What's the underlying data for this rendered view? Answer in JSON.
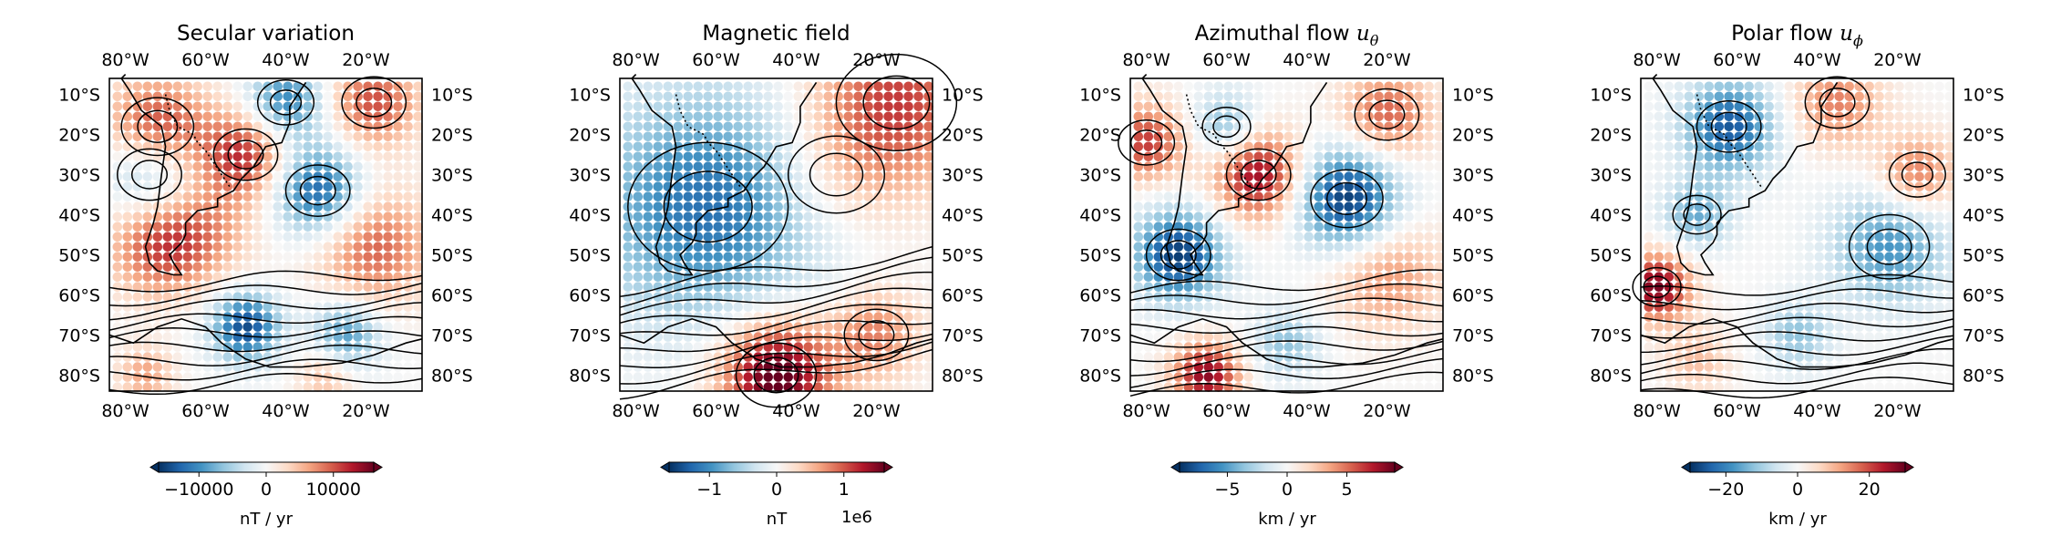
{
  "chart_data": [
    {
      "type": "heatmap",
      "title": "Secular variation",
      "x_ticks": [
        "80°W",
        "60°W",
        "40°W",
        "20°W"
      ],
      "x_tick_values": [
        -80,
        -60,
        -40,
        -20
      ],
      "y_ticks": [
        "10°S",
        "20°S",
        "30°S",
        "40°S",
        "50°S",
        "60°S",
        "70°S",
        "80°S"
      ],
      "y_tick_values": [
        -10,
        -20,
        -30,
        -40,
        -50,
        -60,
        -70,
        -80
      ],
      "xlim": [
        -84,
        -6
      ],
      "ylim": [
        -84,
        -6
      ],
      "colorbar": {
        "ticks": [
          "−10000",
          "0",
          "10000"
        ],
        "tick_values": [
          -10000,
          0,
          10000
        ],
        "range": [
          -16000,
          16000
        ],
        "label": "nT / yr",
        "offset_text": "",
        "colormap": "RdBu_r"
      },
      "field_pattern": [
        {
          "lon": -72,
          "lat": -18,
          "value": 0.7,
          "size": 9
        },
        {
          "lon": -50,
          "lat": -25,
          "value": 0.75,
          "size": 8
        },
        {
          "lon": -40,
          "lat": -12,
          "value": -0.7,
          "size": 7
        },
        {
          "lon": -18,
          "lat": -12,
          "value": 0.65,
          "size": 8
        },
        {
          "lon": -74,
          "lat": -30,
          "value": -0.5,
          "size": 8
        },
        {
          "lon": -32,
          "lat": -34,
          "value": -0.85,
          "size": 8
        },
        {
          "lon": -72,
          "lat": -48,
          "value": 0.6,
          "size": 9
        },
        {
          "lon": -18,
          "lat": -48,
          "value": 0.6,
          "size": 10
        },
        {
          "lon": -60,
          "lat": -44,
          "value": 0.35,
          "size": 9
        },
        {
          "lon": -50,
          "lat": -68,
          "value": -0.9,
          "size": 6
        },
        {
          "lon": -25,
          "lat": -70,
          "value": -0.6,
          "size": 6
        },
        {
          "lon": -75,
          "lat": -80,
          "value": 0.4,
          "size": 5
        },
        {
          "lon": -30,
          "lat": -80,
          "value": 0.35,
          "size": 5
        }
      ]
    },
    {
      "type": "heatmap",
      "title": "Magnetic field",
      "x_ticks": [
        "80°W",
        "60°W",
        "40°W",
        "20°W"
      ],
      "x_tick_values": [
        -80,
        -60,
        -40,
        -20
      ],
      "y_ticks": [
        "10°S",
        "20°S",
        "30°S",
        "40°S",
        "50°S",
        "60°S",
        "70°S",
        "80°S"
      ],
      "y_tick_values": [
        -10,
        -20,
        -30,
        -40,
        -50,
        -60,
        -70,
        -80
      ],
      "xlim": [
        -84,
        -6
      ],
      "ylim": [
        -84,
        -6
      ],
      "colorbar": {
        "ticks": [
          "−1",
          "0",
          "1"
        ],
        "tick_values": [
          -1,
          0,
          1
        ],
        "range": [
          -1.6,
          1.6
        ],
        "label": "nT",
        "offset_text": "1e6",
        "colormap": "RdBu_r"
      },
      "field_pattern": [
        {
          "lon": -62,
          "lat": -38,
          "value": -0.75,
          "size": 20
        },
        {
          "lon": -15,
          "lat": -12,
          "value": 0.7,
          "size": 15
        },
        {
          "lon": -30,
          "lat": -30,
          "value": 0.2,
          "size": 12
        },
        {
          "lon": -45,
          "lat": -80,
          "value": 1.1,
          "size": 10
        },
        {
          "lon": -20,
          "lat": -70,
          "value": 0.5,
          "size": 8
        }
      ]
    },
    {
      "type": "heatmap",
      "title": "Azimuthal flow u_θ",
      "title_text": "Azimuthal flow ",
      "title_math": "u",
      "title_sub": "θ",
      "x_ticks": [
        "80°W",
        "60°W",
        "40°W",
        "20°W"
      ],
      "x_tick_values": [
        -80,
        -60,
        -40,
        -20
      ],
      "y_ticks": [
        "10°S",
        "20°S",
        "30°S",
        "40°S",
        "50°S",
        "60°S",
        "70°S",
        "80°S"
      ],
      "y_tick_values": [
        -10,
        -20,
        -30,
        -40,
        -50,
        -60,
        -70,
        -80
      ],
      "xlim": [
        -84,
        -6
      ],
      "ylim": [
        -84,
        -6
      ],
      "colorbar": {
        "ticks": [
          "−5",
          "0",
          "5"
        ],
        "tick_values": [
          -5,
          0,
          5
        ],
        "range": [
          -9,
          9
        ],
        "label": "km / yr",
        "offset_text": "",
        "colormap": "RdBu_r"
      },
      "field_pattern": [
        {
          "lon": -52,
          "lat": -30,
          "value": 0.9,
          "size": 8
        },
        {
          "lon": -30,
          "lat": -36,
          "value": -1.0,
          "size": 9
        },
        {
          "lon": -72,
          "lat": -50,
          "value": -0.95,
          "size": 8
        },
        {
          "lon": -80,
          "lat": -22,
          "value": 0.7,
          "size": 7
        },
        {
          "lon": -20,
          "lat": -15,
          "value": 0.6,
          "size": 8
        },
        {
          "lon": -60,
          "lat": -18,
          "value": -0.5,
          "size": 6
        },
        {
          "lon": -20,
          "lat": -55,
          "value": 0.45,
          "size": 10
        },
        {
          "lon": -65,
          "lat": -80,
          "value": 0.9,
          "size": 6
        },
        {
          "lon": -45,
          "lat": -72,
          "value": -0.4,
          "size": 6
        }
      ]
    },
    {
      "type": "heatmap",
      "title": "Polar flow u_ϕ",
      "title_text": "Polar flow ",
      "title_math": "u",
      "title_sub": "ϕ",
      "x_ticks": [
        "80°W",
        "60°W",
        "40°W",
        "20°W"
      ],
      "x_tick_values": [
        -80,
        -60,
        -40,
        -20
      ],
      "y_ticks": [
        "10°S",
        "20°S",
        "30°S",
        "40°S",
        "50°S",
        "60°S",
        "70°S",
        "80°S"
      ],
      "y_tick_values": [
        -10,
        -20,
        -30,
        -40,
        -50,
        -60,
        -70,
        -80
      ],
      "xlim": [
        -84,
        -6
      ],
      "ylim": [
        -84,
        -6
      ],
      "colorbar": {
        "ticks": [
          "−20",
          "0",
          "20"
        ],
        "tick_values": [
          -20,
          0,
          20
        ],
        "range": [
          -30,
          30
        ],
        "label": "km / yr",
        "offset_text": "",
        "colormap": "RdBu_r"
      },
      "field_pattern": [
        {
          "lon": -62,
          "lat": -18,
          "value": -0.85,
          "size": 8
        },
        {
          "lon": -80,
          "lat": -58,
          "value": 0.95,
          "size": 6
        },
        {
          "lon": -22,
          "lat": -48,
          "value": -0.6,
          "size": 10
        },
        {
          "lon": -35,
          "lat": -12,
          "value": 0.5,
          "size": 8
        },
        {
          "lon": -15,
          "lat": -30,
          "value": 0.55,
          "size": 7
        },
        {
          "lon": -70,
          "lat": -40,
          "value": -0.5,
          "size": 6
        },
        {
          "lon": -45,
          "lat": -70,
          "value": -0.4,
          "size": 6
        },
        {
          "lon": -70,
          "lat": -76,
          "value": 0.3,
          "size": 6
        }
      ]
    }
  ]
}
